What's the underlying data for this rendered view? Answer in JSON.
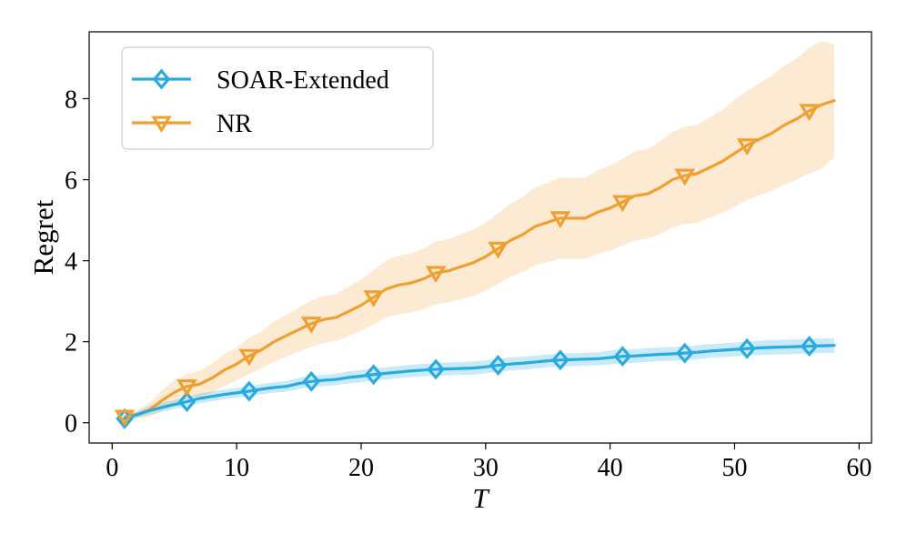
{
  "chart_data": {
    "type": "line",
    "title": "",
    "xlabel": "T",
    "ylabel": "Regret",
    "xlim": [
      -1.85,
      61.0
    ],
    "ylim": [
      -0.5,
      9.65
    ],
    "xticks": [
      0,
      10,
      20,
      30,
      40,
      50,
      60
    ],
    "yticks": [
      0,
      2,
      4,
      6,
      8
    ],
    "grid": false,
    "legend_position": "upper-left",
    "series": [
      {
        "name": "SOAR-Extended",
        "color": "#29abe2",
        "marker": "diamond",
        "marker_every": 5,
        "x": [
          1,
          2,
          3,
          4,
          5,
          6,
          7,
          8,
          9,
          10,
          11,
          12,
          13,
          14,
          15,
          16,
          17,
          18,
          19,
          20,
          21,
          22,
          23,
          24,
          25,
          26,
          27,
          28,
          29,
          30,
          31,
          32,
          33,
          34,
          35,
          36,
          37,
          38,
          39,
          40,
          41,
          42,
          43,
          44,
          45,
          46,
          47,
          48,
          49,
          50,
          51,
          52,
          53,
          54,
          55,
          56,
          57,
          58
        ],
        "y": [
          0.1,
          0.2,
          0.3,
          0.38,
          0.45,
          0.52,
          0.6,
          0.65,
          0.7,
          0.74,
          0.78,
          0.83,
          0.87,
          0.9,
          0.97,
          1.02,
          1.05,
          1.07,
          1.12,
          1.15,
          1.19,
          1.22,
          1.25,
          1.28,
          1.3,
          1.32,
          1.33,
          1.34,
          1.35,
          1.38,
          1.42,
          1.45,
          1.47,
          1.5,
          1.53,
          1.55,
          1.56,
          1.57,
          1.58,
          1.61,
          1.64,
          1.65,
          1.67,
          1.69,
          1.7,
          1.72,
          1.74,
          1.77,
          1.79,
          1.81,
          1.83,
          1.85,
          1.86,
          1.87,
          1.88,
          1.89,
          1.9,
          1.91
        ],
        "lower": [
          0.05,
          0.12,
          0.2,
          0.27,
          0.34,
          0.41,
          0.48,
          0.53,
          0.58,
          0.62,
          0.66,
          0.7,
          0.74,
          0.77,
          0.83,
          0.88,
          0.91,
          0.93,
          0.97,
          1.0,
          1.04,
          1.07,
          1.1,
          1.13,
          1.15,
          1.16,
          1.17,
          1.18,
          1.19,
          1.22,
          1.26,
          1.29,
          1.31,
          1.34,
          1.37,
          1.39,
          1.4,
          1.41,
          1.42,
          1.44,
          1.47,
          1.48,
          1.5,
          1.52,
          1.53,
          1.55,
          1.57,
          1.6,
          1.62,
          1.64,
          1.66,
          1.67,
          1.68,
          1.69,
          1.7,
          1.71,
          1.72,
          1.73
        ],
        "upper": [
          0.15,
          0.28,
          0.4,
          0.49,
          0.56,
          0.63,
          0.72,
          0.77,
          0.82,
          0.86,
          0.9,
          0.96,
          1.0,
          1.03,
          1.11,
          1.16,
          1.19,
          1.21,
          1.27,
          1.3,
          1.34,
          1.37,
          1.4,
          1.43,
          1.45,
          1.48,
          1.49,
          1.5,
          1.51,
          1.54,
          1.58,
          1.61,
          1.63,
          1.66,
          1.69,
          1.71,
          1.72,
          1.73,
          1.74,
          1.78,
          1.81,
          1.82,
          1.84,
          1.86,
          1.87,
          1.89,
          1.91,
          1.94,
          1.96,
          1.98,
          2.0,
          2.03,
          2.04,
          2.05,
          2.06,
          2.07,
          2.08,
          2.09
        ]
      },
      {
        "name": "NR",
        "color": "#f0a030",
        "marker": "triangle-down",
        "marker_every": 5,
        "x": [
          1,
          2,
          3,
          4,
          5,
          6,
          7,
          8,
          9,
          10,
          11,
          12,
          13,
          14,
          15,
          16,
          17,
          18,
          19,
          20,
          21,
          22,
          23,
          24,
          25,
          26,
          27,
          28,
          29,
          30,
          31,
          32,
          33,
          34,
          35,
          36,
          37,
          38,
          39,
          40,
          41,
          42,
          43,
          44,
          45,
          46,
          47,
          48,
          49,
          50,
          51,
          52,
          53,
          54,
          55,
          56,
          57,
          58
        ],
        "y": [
          0.15,
          0.2,
          0.32,
          0.55,
          0.75,
          0.9,
          0.95,
          1.1,
          1.3,
          1.45,
          1.65,
          1.8,
          2.0,
          2.15,
          2.3,
          2.45,
          2.55,
          2.6,
          2.75,
          2.9,
          3.1,
          3.3,
          3.4,
          3.45,
          3.55,
          3.7,
          3.75,
          3.85,
          3.95,
          4.1,
          4.3,
          4.5,
          4.65,
          4.85,
          4.95,
          5.05,
          5.05,
          5.05,
          5.2,
          5.3,
          5.45,
          5.6,
          5.65,
          5.8,
          6.0,
          6.1,
          6.15,
          6.3,
          6.45,
          6.65,
          6.85,
          7.0,
          7.15,
          7.35,
          7.5,
          7.7,
          7.85,
          7.95
        ],
        "lower": [
          0.1,
          0.1,
          0.15,
          0.3,
          0.45,
          0.6,
          0.65,
          0.75,
          0.9,
          1.05,
          1.2,
          1.35,
          1.5,
          1.63,
          1.76,
          1.88,
          1.97,
          2.02,
          2.14,
          2.27,
          2.43,
          2.6,
          2.68,
          2.72,
          2.8,
          2.93,
          2.97,
          3.05,
          3.13,
          3.26,
          3.43,
          3.6,
          3.72,
          3.89,
          3.97,
          4.05,
          4.05,
          4.05,
          4.17,
          4.25,
          4.38,
          4.5,
          4.55,
          4.66,
          4.82,
          4.9,
          4.94,
          5.06,
          5.18,
          5.34,
          5.5,
          5.62,
          5.73,
          5.88,
          6.0,
          6.15,
          6.28,
          6.55
        ],
        "upper": [
          0.2,
          0.3,
          0.5,
          0.8,
          1.05,
          1.2,
          1.28,
          1.45,
          1.7,
          1.85,
          2.1,
          2.25,
          2.5,
          2.67,
          2.84,
          3.02,
          3.13,
          3.18,
          3.36,
          3.53,
          3.77,
          4.0,
          4.12,
          4.18,
          4.3,
          4.47,
          4.53,
          4.65,
          4.77,
          4.94,
          5.17,
          5.4,
          5.58,
          5.81,
          5.93,
          6.05,
          6.05,
          6.05,
          6.23,
          6.35,
          6.52,
          6.7,
          6.76,
          6.94,
          7.18,
          7.3,
          7.36,
          7.54,
          7.72,
          7.96,
          8.2,
          8.38,
          8.57,
          8.82,
          9.0,
          9.25,
          9.42,
          9.35
        ]
      }
    ]
  }
}
